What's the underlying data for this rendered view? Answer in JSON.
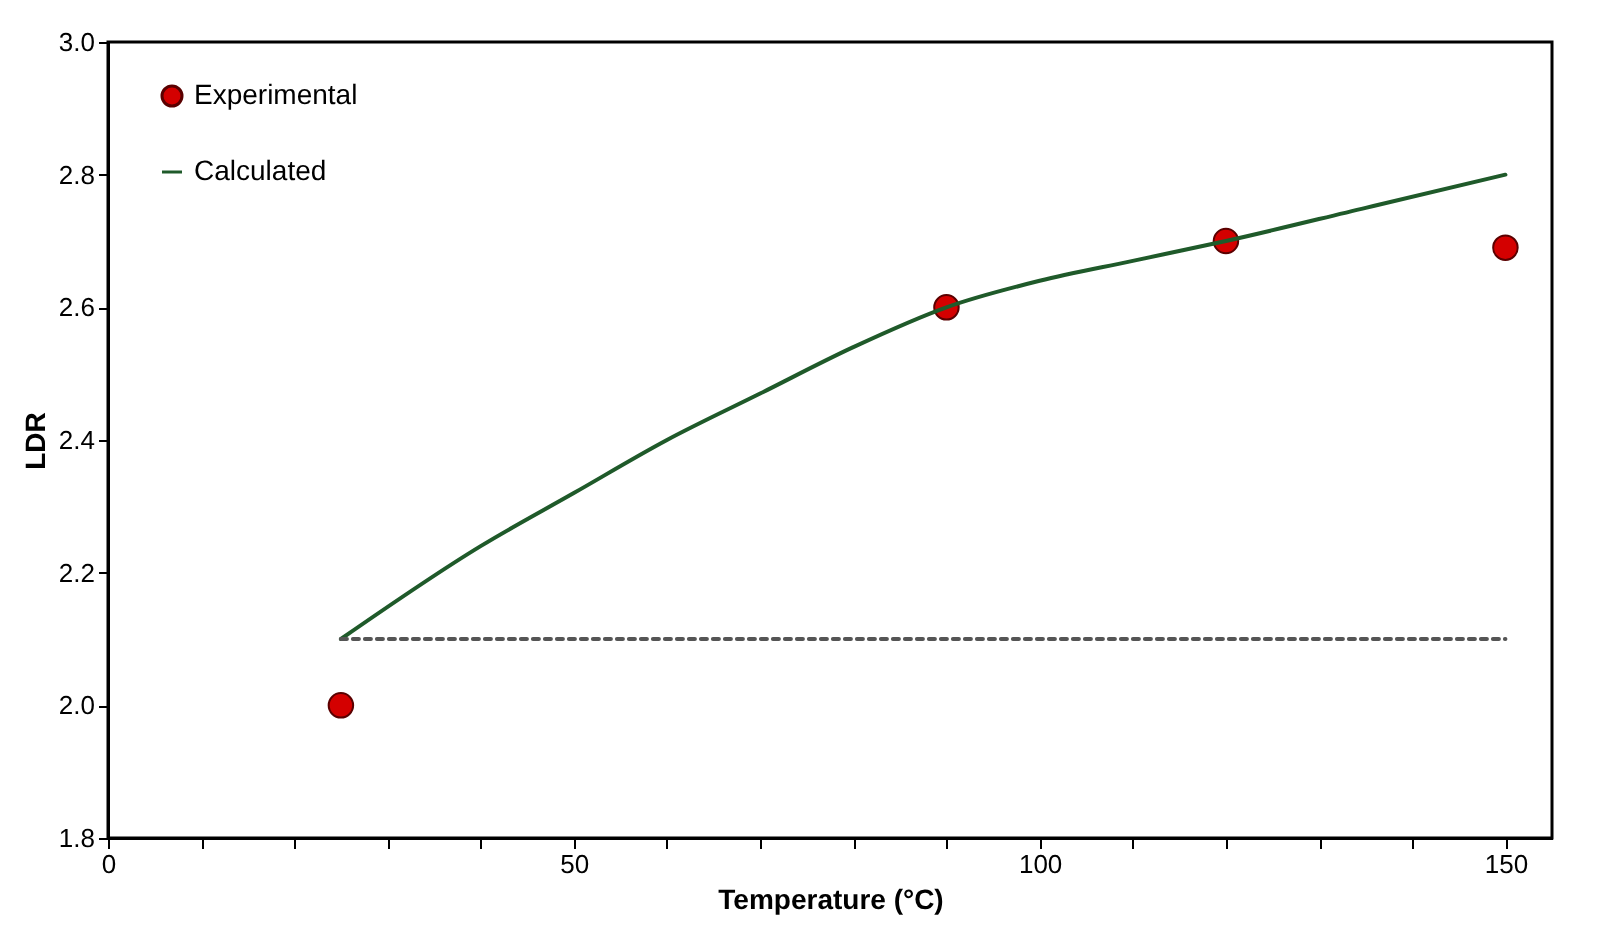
{
  "chart_data": {
    "type": "scatter",
    "xlabel": "Temperature (°C)",
    "ylabel": "LDR",
    "xlim": [
      0,
      155
    ],
    "ylim": [
      1.8,
      3.0
    ],
    "xticks": [
      0,
      {
        "value": 10,
        "label": null
      },
      {
        "value": 20,
        "label": null
      },
      {
        "value": 30,
        "label": null
      },
      {
        "value": 40,
        "label": null
      },
      50,
      {
        "value": 60,
        "label": null
      },
      {
        "value": 70,
        "label": null
      },
      {
        "value": 80,
        "label": null
      },
      {
        "value": 90,
        "label": null
      },
      100,
      {
        "value": 110,
        "label": null
      },
      {
        "value": 120,
        "label": null
      },
      {
        "value": 130,
        "label": null
      },
      {
        "value": 140,
        "label": null
      },
      150
    ],
    "yticks": [
      1.8,
      {
        "value": 2,
        "label": "2.0"
      },
      2.2,
      2.4,
      2.6,
      2.8,
      {
        "value": 3,
        "label": "3.0"
      }
    ],
    "grid": false,
    "legend": "top left",
    "series": [
      {
        "name": "Experimental",
        "color": "#d40000",
        "marker": "circle",
        "x": [
          25,
          90,
          120,
          150
        ],
        "values": [
          2.0,
          2.6,
          2.7,
          2.69
        ]
      },
      {
        "name": "Calculated",
        "type": "line",
        "color": "#1f5a2a",
        "line_style": "solid",
        "x": [
          25,
          40,
          50,
          60,
          70,
          80,
          90,
          100,
          110,
          120,
          135,
          150
        ],
        "values": [
          2.1,
          2.24,
          2.32,
          2.4,
          2.47,
          2.54,
          2.6,
          2.64,
          2.67,
          2.7,
          2.75,
          2.8
        ]
      },
      {
        "type": "line",
        "color": "#555555",
        "line_style": "dotted",
        "x": [
          25,
          150
        ],
        "values": [
          2.1,
          2.1
        ]
      }
    ]
  }
}
